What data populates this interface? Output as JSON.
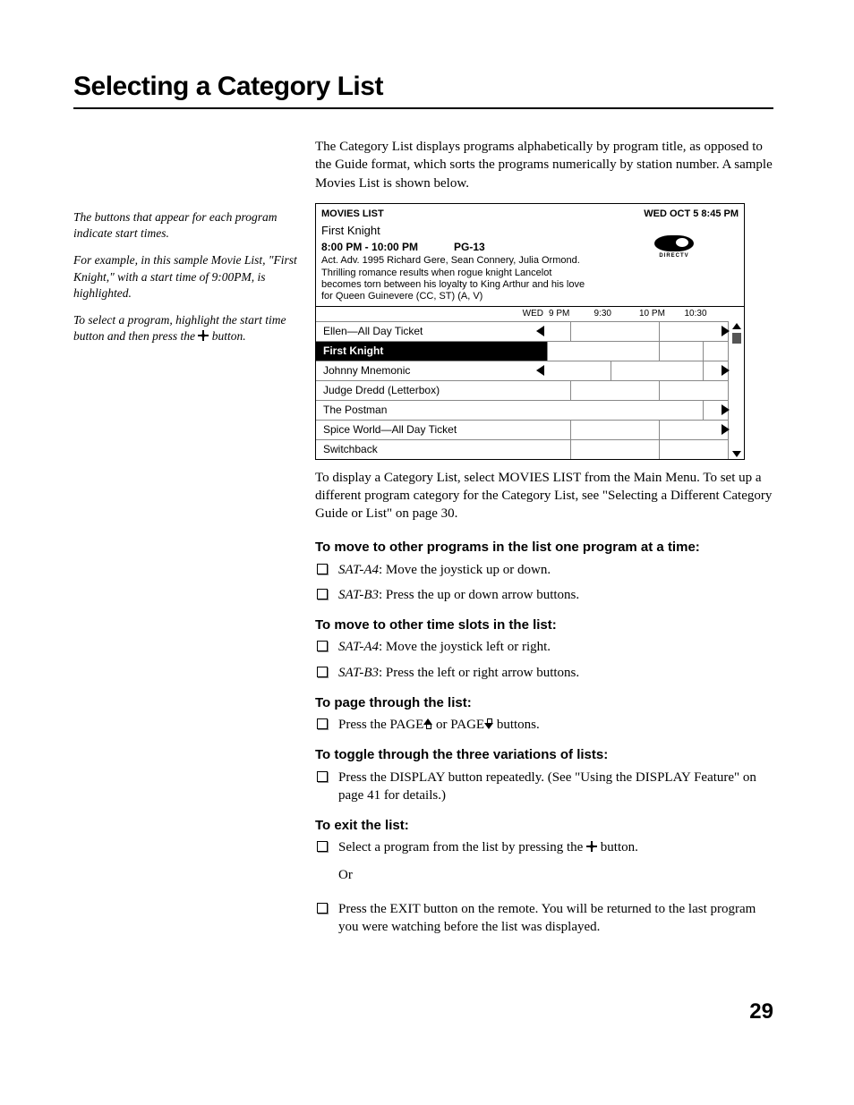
{
  "title": "Selecting a Category List",
  "sidebar": {
    "p1": "The buttons that appear for each program indicate start times.",
    "p2": "For example, in this sample Movie List, \"First Knight,\" with a start time of 9:00PM, is highlighted.",
    "p3a": "To select a program, highlight the start time button and then press the ",
    "p3b": " button."
  },
  "intro": "The Category List displays programs alphabetically by program title, as opposed to the Guide format, which sorts the programs numerically by station number. A sample Movies List is shown below.",
  "figure": {
    "header_left": "MOVIES LIST",
    "header_right": "WED OCT 5 8:45 PM",
    "movie_title": "First Knight",
    "time_rating_time": "8:00 PM - 10:00 PM",
    "time_rating_rating": "PG-13",
    "description": "Act. Adv. 1995 Richard Gere, Sean Connery, Julia Ormond. Thrilling romance results when rogue knight Lancelot becomes torn between his loyalty to King Arthur and his love for Queen Guinevere (CC, ST) (A, V)",
    "logo_label": "DIRECTV",
    "time_cols": {
      "day": "WED",
      "c1": "9 PM",
      "c2": "9:30",
      "c3": "10 PM",
      "c4": "10:30"
    },
    "grid_config": {
      "col_splits": [
        0,
        24,
        48,
        72,
        100
      ],
      "highlight_index": 1
    },
    "rows": [
      {
        "name": "Ellen—All Day Ticket",
        "slots": [
          {
            "pos": 13
          },
          {
            "pos": 62
          }
        ],
        "left_arrow": true,
        "right_arrow": true
      },
      {
        "name": "First Knight",
        "slots": [
          {
            "pos": 0
          },
          {
            "pos": 62
          },
          {
            "pos": 86
          }
        ],
        "left_arrow": true,
        "right_arrow": false
      },
      {
        "name": "Johnny Mnemonic",
        "slots": [
          {
            "pos": 35
          },
          {
            "pos": 86
          }
        ],
        "left_arrow": true,
        "right_arrow": true
      },
      {
        "name": "Judge Dredd (Letterbox)",
        "slots": [
          {
            "pos": 13
          },
          {
            "pos": 62
          }
        ],
        "left_arrow": false,
        "right_arrow": false
      },
      {
        "name": "The Postman",
        "slots": [
          {
            "pos": 86
          }
        ],
        "left_arrow": false,
        "right_arrow": true
      },
      {
        "name": "Spice World—All Day Ticket",
        "slots": [
          {
            "pos": 13
          },
          {
            "pos": 62
          }
        ],
        "left_arrow": false,
        "right_arrow": true
      },
      {
        "name": "Switchback",
        "slots": [
          {
            "pos": 13
          },
          {
            "pos": 62
          }
        ],
        "left_arrow": false,
        "right_arrow": false
      }
    ]
  },
  "below": "To display a Category List, select MOVIES LIST from the Main Menu. To set up a different program category for the Category List, see \"Selecting a Different Category Guide or List\" on page 30.",
  "sections": [
    {
      "heading": "To move to other programs in the list one program at a time:",
      "items": [
        {
          "model": "SAT-A4",
          "text": ": Move the joystick up or down."
        },
        {
          "model": "SAT-B3",
          "text": ": Press the up or down arrow buttons."
        }
      ]
    },
    {
      "heading": "To move to other time slots in the list:",
      "items": [
        {
          "model": "SAT-A4",
          "text": ": Move the joystick left or right."
        },
        {
          "model": "SAT-B3",
          "text": ": Press the left or right arrow buttons."
        }
      ]
    },
    {
      "heading": "To page through the list:",
      "page_item": {
        "pre": "Press the PAGE",
        "mid": " or PAGE",
        "post": " buttons."
      }
    },
    {
      "heading": "To toggle through the three variations of lists:",
      "items": [
        {
          "text": "Press the DISPLAY button repeatedly. (See \"Using the DISPLAY Feature\" on page 41 for details.)"
        }
      ]
    },
    {
      "heading": "To exit the list:",
      "exit_items": {
        "first_pre": "Select a program from the list by pressing the ",
        "first_post": " button.",
        "or": "Or",
        "second": "Press the EXIT button on the remote. You will be returned to the last program you were watching before the list was displayed."
      }
    }
  ],
  "page_number": "29"
}
